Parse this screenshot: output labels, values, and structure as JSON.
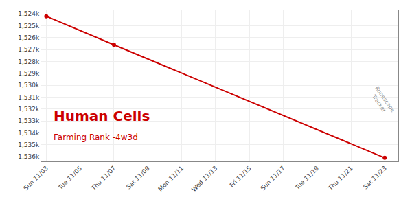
{
  "chart_data": {
    "type": "line",
    "title": "Human Cells",
    "subtitle": "Farming Rank -4w3d",
    "annotations": [
      "Runescape\nTracker"
    ],
    "x": [
      0,
      4,
      20
    ],
    "values": [
      1524200,
      1526600,
      1536100
    ],
    "color": "#cc0000",
    "marker": "circle",
    "xlim": [
      -0.3,
      20.8
    ],
    "xticks": [
      {
        "value": 0,
        "label": "Sun 11/03"
      },
      {
        "value": 2,
        "label": "Tue 11/05"
      },
      {
        "value": 4,
        "label": "Thu 11/07"
      },
      {
        "value": 6,
        "label": "Sat 11/09"
      },
      {
        "value": 8,
        "label": "Mon 11/11"
      },
      {
        "value": 10,
        "label": "Wed 11/13"
      },
      {
        "value": 12,
        "label": "Fri 11/15"
      },
      {
        "value": 14,
        "label": "Sun 11/17"
      },
      {
        "value": 16,
        "label": "Tue 11/19"
      },
      {
        "value": 18,
        "label": "Thu 11/21"
      },
      {
        "value": 20,
        "label": "Sat 11/23"
      }
    ],
    "ylim": [
      1536400,
      1523700
    ],
    "yticks": [
      {
        "value": 1524000,
        "label": "1,524k"
      },
      {
        "value": 1525000,
        "label": "1,525k"
      },
      {
        "value": 1526000,
        "label": "1,526k"
      },
      {
        "value": 1527000,
        "label": "1,527k"
      },
      {
        "value": 1528000,
        "label": "1,528k"
      },
      {
        "value": 1529000,
        "label": "1,529k"
      },
      {
        "value": 1530000,
        "label": "1,530k"
      },
      {
        "value": 1531000,
        "label": "1,531k"
      },
      {
        "value": 1532000,
        "label": "1,532k"
      },
      {
        "value": 1533000,
        "label": "1,533k"
      },
      {
        "value": 1534000,
        "label": "1,534k"
      },
      {
        "value": 1535000,
        "label": "1,535k"
      },
      {
        "value": 1536000,
        "label": "1,536k"
      }
    ],
    "grid": true
  }
}
